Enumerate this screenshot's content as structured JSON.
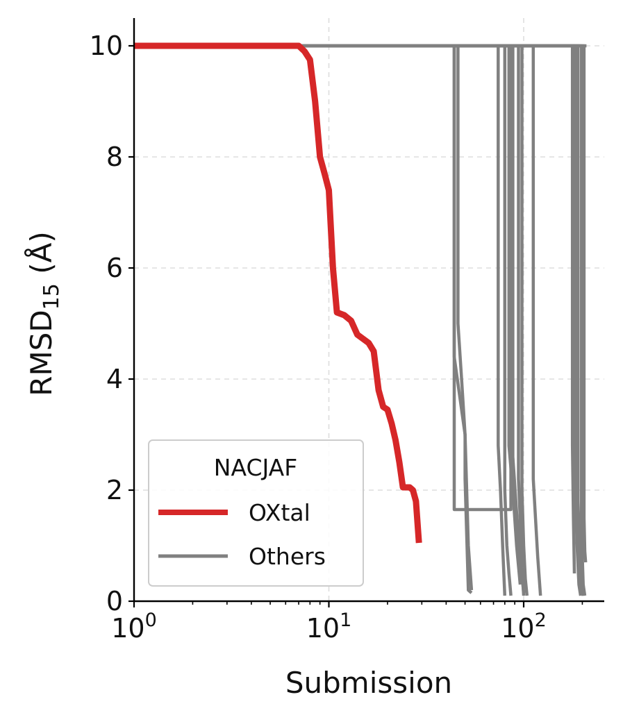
{
  "chart_data": {
    "type": "line",
    "title": "",
    "xlabel": "Submission",
    "ylabel": "RMSD",
    "ylabel_subscript": "15",
    "ylabel_unit": " (Å)",
    "xscale": "log",
    "xlim": [
      1,
      280
    ],
    "ylim": [
      0,
      10.5
    ],
    "grid": true,
    "x_ticks": [
      {
        "value": 1,
        "base": "10",
        "exp": "0"
      },
      {
        "value": 10,
        "base": "10",
        "exp": "1"
      },
      {
        "value": 100,
        "base": "10",
        "exp": "2"
      }
    ],
    "y_ticks": [
      {
        "value": 0,
        "label": "0"
      },
      {
        "value": 2,
        "label": "2"
      },
      {
        "value": 4,
        "label": "4"
      },
      {
        "value": 6,
        "label": "6"
      },
      {
        "value": 8,
        "label": "8"
      },
      {
        "value": 10,
        "label": "10"
      }
    ],
    "legend": {
      "title": "NACJAF",
      "position": "lower-left",
      "entries": [
        {
          "label": "OXtal",
          "color": "#d62728"
        },
        {
          "label": "Others",
          "color": "#808080"
        }
      ]
    },
    "series": [
      {
        "name": "Others",
        "color": "#808080",
        "x": [
          1,
          44,
          44,
          50,
          50,
          52,
          54
        ],
        "y": [
          10,
          10,
          4.4,
          3.0,
          2.2,
          0.2,
          0.15
        ]
      },
      {
        "name": "Others",
        "color": "#808080",
        "x": [
          1,
          46,
          46,
          48,
          50,
          52,
          54
        ],
        "y": [
          10,
          10,
          5.0,
          4.0,
          3.0,
          1.0,
          0.2
        ]
      },
      {
        "name": "Others",
        "color": "#808080",
        "x": [
          1,
          44,
          44,
          86,
          86
        ],
        "y": [
          10,
          10,
          1.65,
          1.65,
          10
        ]
      },
      {
        "name": "Others",
        "color": "#808080",
        "x": [
          1,
          74,
          74,
          76,
          78,
          80
        ],
        "y": [
          10,
          10,
          2.8,
          2.0,
          1.0,
          0.1
        ]
      },
      {
        "name": "Others",
        "color": "#808080",
        "x": [
          1,
          80,
          80,
          82,
          84,
          86
        ],
        "y": [
          10,
          10,
          2.0,
          1.0,
          0.5,
          0.1
        ]
      },
      {
        "name": "Others",
        "color": "#808080",
        "x": [
          1,
          84,
          84,
          88,
          92,
          96
        ],
        "y": [
          10,
          10,
          2.8,
          2.0,
          1.0,
          0.3
        ]
      },
      {
        "name": "Others",
        "color": "#808080",
        "x": [
          1,
          88,
          88,
          92,
          96,
          100
        ],
        "y": [
          10,
          10,
          2.6,
          1.6,
          0.8,
          0.15
        ]
      },
      {
        "name": "Others",
        "color": "#808080",
        "x": [
          1,
          94,
          94,
          96,
          98,
          100
        ],
        "y": [
          10,
          10,
          2.2,
          1.5,
          0.6,
          0.1
        ]
      },
      {
        "name": "Others",
        "color": "#808080",
        "x": [
          1,
          98,
          98,
          100,
          102,
          104
        ],
        "y": [
          10,
          10,
          2.0,
          1.0,
          0.4,
          0.1
        ]
      },
      {
        "name": "Others",
        "color": "#808080",
        "x": [
          1,
          112,
          112,
          115,
          118,
          122
        ],
        "y": [
          10,
          10,
          2.2,
          1.5,
          0.8,
          0.1
        ]
      },
      {
        "name": "Others",
        "color": "#808080",
        "x": [
          1,
          178,
          178,
          180,
          182
        ],
        "y": [
          10,
          10,
          2.8,
          1.5,
          0.5
        ]
      },
      {
        "name": "Others",
        "color": "#808080",
        "x": [
          1,
          184,
          184,
          188,
          192,
          196
        ],
        "y": [
          10,
          10,
          2.0,
          1.0,
          0.3,
          0.1
        ]
      },
      {
        "name": "Others",
        "color": "#808080",
        "x": [
          1,
          190,
          190,
          194,
          198,
          202
        ],
        "y": [
          10,
          10,
          1.8,
          0.8,
          0.2,
          0.1
        ]
      },
      {
        "name": "Others",
        "color": "#808080",
        "x": [
          1,
          198,
          198,
          200,
          202,
          206
        ],
        "y": [
          10,
          10,
          1.5,
          0.8,
          0.3,
          0.1
        ]
      },
      {
        "name": "Others",
        "color": "#808080",
        "x": [
          1,
          204,
          204,
          206,
          208
        ],
        "y": [
          10,
          10,
          1.5,
          0.9,
          0.7
        ]
      },
      {
        "name": "Others",
        "color": "#808080",
        "x": [
          1,
          210
        ],
        "y": [
          10,
          10
        ]
      },
      {
        "name": "OXtal",
        "color": "#d62728",
        "x": [
          1,
          7,
          7.5,
          8,
          8.5,
          9,
          9.5,
          10,
          10.5,
          11,
          12,
          13,
          14,
          16,
          17,
          18,
          19,
          20,
          21,
          22,
          23,
          24,
          25,
          26,
          27,
          28,
          29
        ],
        "y": [
          10,
          10,
          9.9,
          9.75,
          9.0,
          8.0,
          7.7,
          7.4,
          6.0,
          5.2,
          5.15,
          5.05,
          4.8,
          4.65,
          4.5,
          3.8,
          3.5,
          3.45,
          3.2,
          2.9,
          2.5,
          2.05,
          2.05,
          2.05,
          2.0,
          1.8,
          1.05
        ]
      }
    ]
  }
}
